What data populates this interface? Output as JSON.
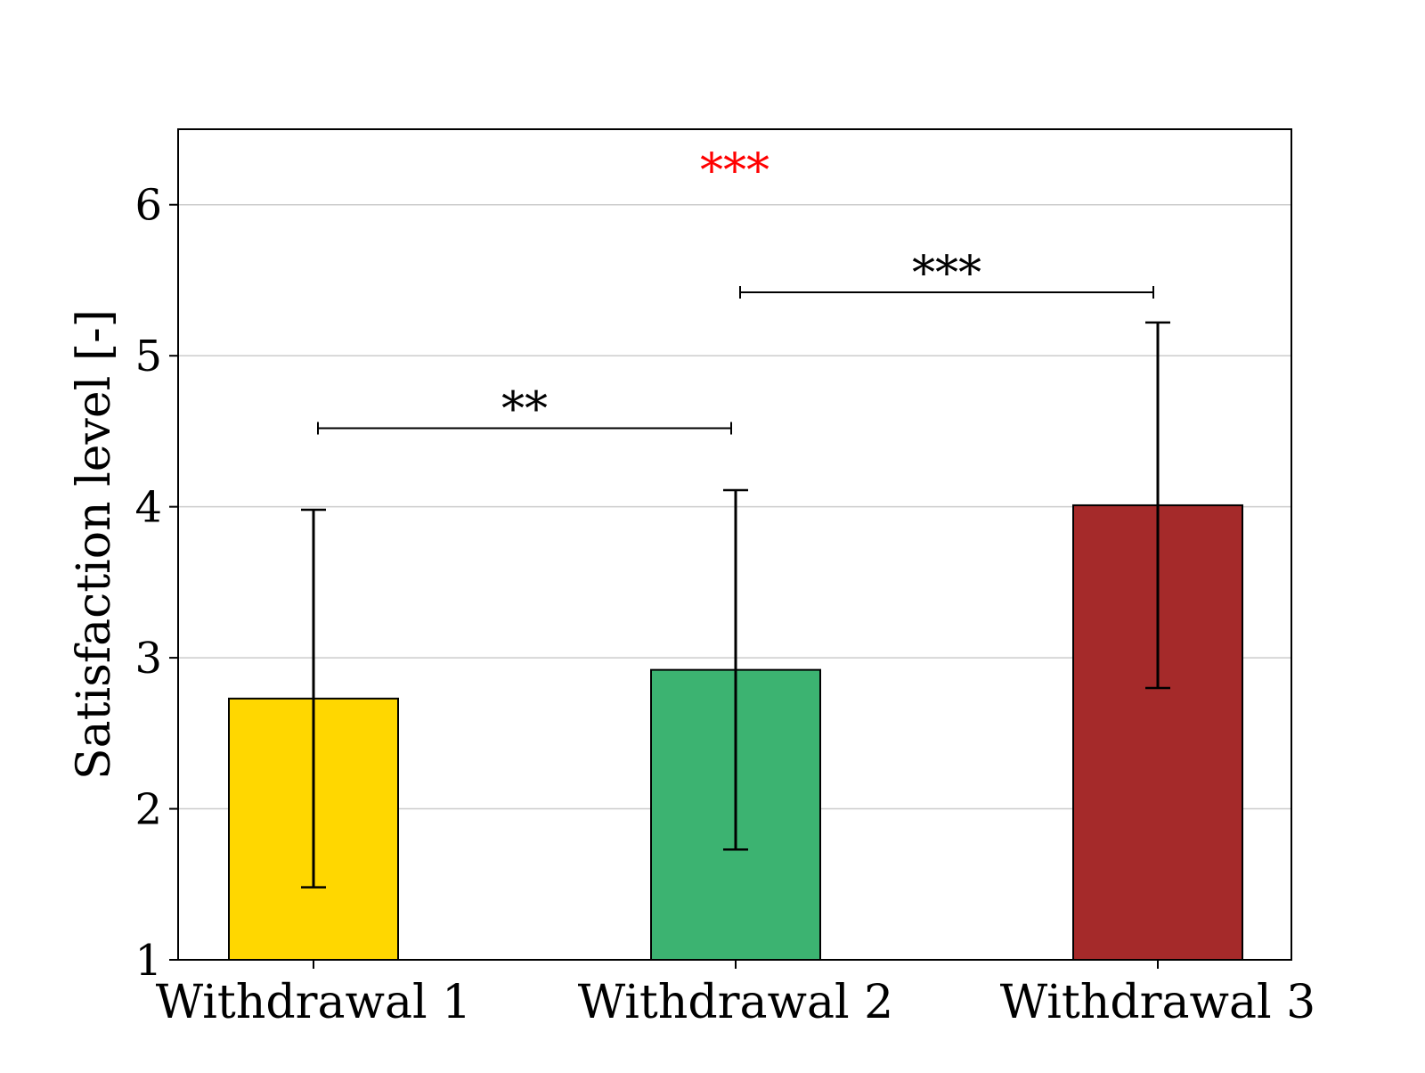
{
  "chart_data": {
    "type": "bar",
    "title": "",
    "xlabel": "",
    "ylabel": "Satisfaction level [-]",
    "ylim": [
      1,
      6.5
    ],
    "yticks": [
      "1",
      "2",
      "3",
      "4",
      "5",
      "6"
    ],
    "grid": "y",
    "categories": [
      "Withdrawal 1",
      "Withdrawal 2",
      "Withdrawal 3"
    ],
    "values": [
      2.73,
      2.92,
      4.01
    ],
    "errors": [
      1.25,
      1.19,
      1.21
    ],
    "colors": [
      "#FFD700",
      "#3CB371",
      "#A52A2A"
    ],
    "annotations": [
      {
        "text": "**",
        "from": "Withdrawal 1",
        "to": "Withdrawal 2",
        "y": 4.52,
        "color": "#000000"
      },
      {
        "text": "***",
        "from": "Withdrawal 2",
        "to": "Withdrawal 3",
        "y": 5.42,
        "color": "#000000"
      },
      {
        "text": "***",
        "position": "top-center",
        "y": 6.3,
        "color": "#FF0000"
      }
    ]
  }
}
